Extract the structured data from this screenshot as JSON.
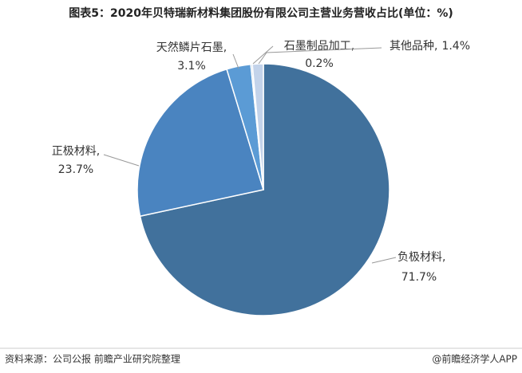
{
  "chart_data": {
    "type": "pie",
    "title": "图表5：2020年贝特瑞新材料集团股份有限公司主营业务营收占比(单位：%)",
    "categories": [
      "负极材料,",
      "正极材料,",
      "天然鳞片石墨,",
      "石墨制品加工,",
      "其他品种,"
    ],
    "values": [
      71.7,
      23.7,
      3.1,
      0.2,
      1.4
    ],
    "value_labels": [
      "71.7%",
      "23.7%",
      "3.1%",
      "0.2%",
      "1.4%"
    ],
    "colors": [
      "#41719c",
      "#4a84c0",
      "#5b9bd5",
      "#a5bfdf",
      "#c3d3ea"
    ],
    "source": "资料来源：公司公报 前瞻产业研究院整理",
    "credit": "@前瞻经济学人APP"
  }
}
